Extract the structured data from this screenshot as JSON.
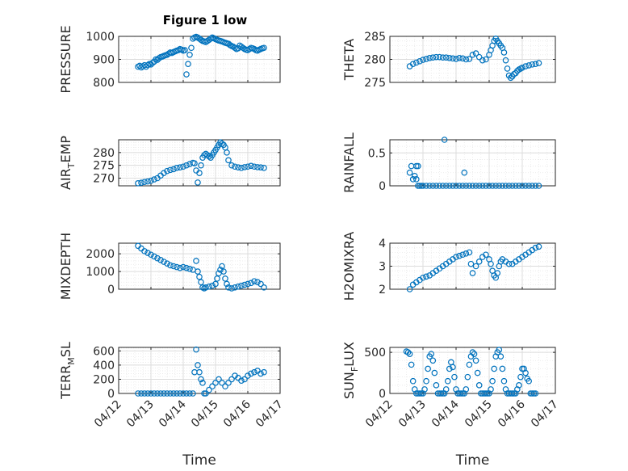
{
  "figure": {
    "title": "Figure 1 low",
    "xlabel": "Time",
    "x_tick_labels": [
      "04/12",
      "04/13",
      "04/14",
      "04/15",
      "04/16",
      "04/17"
    ],
    "marker_color": "#0072BD",
    "axis_color": "#262626",
    "grid_color": "#dcdcdc"
  },
  "chart_data": [
    {
      "type": "scatter",
      "name": "pressure",
      "ylabel": "PRESSURE",
      "ylim": [
        800,
        1000
      ],
      "yticks": [
        800,
        900,
        1000
      ],
      "xlim": [
        "04/12",
        "04/17"
      ],
      "grid": true,
      "x_days": [
        0.6,
        0.65,
        0.7,
        0.75,
        0.8,
        0.85,
        0.9,
        0.95,
        1.0,
        1.05,
        1.1,
        1.15,
        1.2,
        1.25,
        1.3,
        1.35,
        1.4,
        1.45,
        1.5,
        1.55,
        1.6,
        1.65,
        1.7,
        1.75,
        1.8,
        1.85,
        1.9,
        1.95,
        2.0,
        2.05,
        2.1,
        2.15,
        2.2,
        2.25,
        2.3,
        2.35,
        2.4,
        2.45,
        2.5,
        2.55,
        2.6,
        2.65,
        2.7,
        2.75,
        2.8,
        2.85,
        2.9,
        2.95,
        3.0,
        3.05,
        3.1,
        3.15,
        3.2,
        3.25,
        3.3,
        3.35,
        3.4,
        3.45,
        3.5,
        3.55,
        3.6,
        3.65,
        3.7,
        3.75,
        3.8,
        3.85,
        3.9,
        3.95,
        4.0,
        4.05,
        4.1,
        4.15,
        4.2,
        4.25,
        4.3,
        4.35,
        4.4,
        4.45,
        4.5
      ],
      "values": [
        868,
        872,
        865,
        870,
        875,
        868,
        875,
        880,
        878,
        885,
        890,
        900,
        898,
        905,
        910,
        912,
        915,
        918,
        920,
        925,
        930,
        928,
        932,
        935,
        938,
        940,
        945,
        942,
        938,
        940,
        835,
        880,
        920,
        950,
        990,
        995,
        998,
        995,
        990,
        985,
        980,
        978,
        975,
        980,
        985,
        990,
        995,
        992,
        988,
        985,
        982,
        980,
        978,
        975,
        972,
        970,
        968,
        962,
        958,
        955,
        950,
        945,
        948,
        960,
        955,
        950,
        945,
        942,
        940,
        945,
        950,
        948,
        945,
        940,
        938,
        942,
        945,
        948,
        950
      ]
    },
    {
      "type": "scatter",
      "name": "theta",
      "ylabel": "THETA",
      "ylim": [
        275,
        285
      ],
      "yticks": [
        275,
        280,
        285
      ],
      "xlim": [
        "04/12",
        "04/17"
      ],
      "grid": true,
      "x_days": [
        0.6,
        0.7,
        0.8,
        0.9,
        1.0,
        1.1,
        1.2,
        1.3,
        1.4,
        1.5,
        1.6,
        1.7,
        1.8,
        1.9,
        2.0,
        2.1,
        2.2,
        2.3,
        2.4,
        2.5,
        2.6,
        2.7,
        2.8,
        2.9,
        3.0,
        3.05,
        3.1,
        3.15,
        3.2,
        3.25,
        3.3,
        3.35,
        3.4,
        3.45,
        3.5,
        3.55,
        3.6,
        3.65,
        3.7,
        3.75,
        3.8,
        3.85,
        3.9,
        3.95,
        4.0,
        4.1,
        4.2,
        4.3,
        4.4,
        4.5
      ],
      "values": [
        278.5,
        279,
        279.3,
        279.6,
        279.9,
        280.1,
        280.3,
        280.4,
        280.5,
        280.5,
        280.4,
        280.4,
        280.3,
        280.2,
        280.1,
        280.3,
        280.2,
        280,
        280.1,
        281,
        281.3,
        280.5,
        279.8,
        280,
        281,
        282,
        283,
        284,
        284.5,
        284,
        283.5,
        283,
        282.5,
        281.5,
        279.8,
        278,
        276.5,
        276,
        276.3,
        276.8,
        277,
        277.5,
        277.8,
        278,
        278.2,
        278.5,
        278.7,
        278.9,
        279,
        279.2
      ]
    },
    {
      "type": "scatter",
      "name": "air_temp",
      "ylabel_parts": [
        "AIR",
        "T",
        "EMP"
      ],
      "ylim": [
        267,
        285
      ],
      "yticks": [
        270,
        275,
        280
      ],
      "xlim": [
        "04/12",
        "04/17"
      ],
      "grid": true,
      "x_days": [
        0.6,
        0.7,
        0.8,
        0.9,
        1.0,
        1.1,
        1.2,
        1.3,
        1.4,
        1.5,
        1.6,
        1.7,
        1.8,
        1.9,
        2.0,
        2.1,
        2.2,
        2.3,
        2.35,
        2.4,
        2.45,
        2.5,
        2.55,
        2.6,
        2.65,
        2.7,
        2.75,
        2.8,
        2.85,
        2.9,
        2.95,
        3.0,
        3.05,
        3.1,
        3.15,
        3.2,
        3.25,
        3.3,
        3.35,
        3.4,
        3.5,
        3.6,
        3.7,
        3.8,
        3.9,
        4.0,
        4.1,
        4.2,
        4.3,
        4.4,
        4.5
      ],
      "values": [
        268,
        268.2,
        268.5,
        268.7,
        269,
        269.5,
        270,
        271,
        272,
        272.8,
        273.2,
        273.5,
        274,
        274.2,
        274.5,
        275,
        275.5,
        276,
        275.8,
        273,
        268.3,
        272,
        275,
        278,
        279,
        279.5,
        279,
        278.5,
        278,
        279,
        280,
        281,
        282,
        283,
        284,
        283.5,
        283,
        282,
        280,
        277,
        275,
        274.5,
        274.2,
        274,
        274.3,
        274.5,
        274.8,
        274.5,
        274.3,
        274.2,
        274
      ]
    },
    {
      "type": "scatter",
      "name": "rainfall",
      "ylabel": "RAINFALL",
      "ylim": [
        0,
        0.7
      ],
      "yticks": [
        0,
        0.5
      ],
      "xlim": [
        "04/12",
        "04/17"
      ],
      "grid": true,
      "x_days": [
        0.6,
        0.65,
        0.7,
        0.75,
        0.8,
        0.85,
        0.9,
        0.95,
        1.0,
        1.1,
        1.2,
        1.3,
        1.4,
        1.5,
        1.6,
        1.7,
        1.8,
        1.9,
        2.0,
        2.1,
        2.2,
        2.3,
        2.4,
        2.5,
        2.6,
        2.7,
        2.8,
        2.9,
        3.0,
        3.1,
        3.2,
        3.3,
        3.4,
        3.5,
        3.6,
        3.7,
        3.8,
        3.9,
        4.0,
        4.1,
        4.2,
        4.3,
        4.4,
        4.5,
        1.65,
        2.25,
        0.85,
        0.8
      ],
      "values": [
        0.2,
        0.3,
        0.1,
        0.15,
        0.1,
        0,
        0,
        0,
        0,
        0,
        0,
        0,
        0,
        0,
        0,
        0,
        0,
        0,
        0,
        0,
        0,
        0,
        0,
        0,
        0,
        0,
        0,
        0,
        0,
        0,
        0,
        0,
        0,
        0,
        0,
        0,
        0,
        0,
        0,
        0,
        0,
        0,
        0,
        0,
        0.7,
        0.2,
        0.3,
        0.3
      ]
    },
    {
      "type": "scatter",
      "name": "mixdepth",
      "ylabel": "MIXDEPTH",
      "ylim": [
        0,
        2600
      ],
      "yticks": [
        0,
        1000,
        2000
      ],
      "xlim": [
        "04/12",
        "04/17"
      ],
      "grid": true,
      "x_days": [
        0.6,
        0.7,
        0.8,
        0.9,
        1.0,
        1.1,
        1.2,
        1.3,
        1.4,
        1.5,
        1.6,
        1.7,
        1.8,
        1.9,
        2.0,
        2.1,
        2.2,
        2.3,
        2.4,
        2.45,
        2.5,
        2.55,
        2.6,
        2.65,
        2.7,
        2.8,
        2.9,
        3.0,
        3.05,
        3.1,
        3.15,
        3.2,
        3.25,
        3.3,
        3.35,
        3.4,
        3.5,
        3.6,
        3.7,
        3.8,
        3.9,
        4.0,
        4.1,
        4.2,
        4.3,
        4.4,
        4.5
      ],
      "values": [
        2450,
        2300,
        2150,
        2050,
        1950,
        1850,
        1750,
        1650,
        1550,
        1450,
        1350,
        1300,
        1250,
        1200,
        1250,
        1200,
        1150,
        1100,
        1600,
        1000,
        700,
        400,
        100,
        50,
        100,
        150,
        200,
        300,
        600,
        900,
        1100,
        1300,
        1000,
        600,
        300,
        100,
        50,
        100,
        150,
        200,
        250,
        300,
        350,
        450,
        400,
        300,
        100
      ]
    },
    {
      "type": "scatter",
      "name": "h2omixra",
      "ylabel": "H2OMIXRA",
      "ylim": [
        2,
        4
      ],
      "yticks": [
        2,
        3,
        4
      ],
      "xlim": [
        "04/12",
        "04/17"
      ],
      "grid": true,
      "x_days": [
        0.6,
        0.7,
        0.8,
        0.9,
        1.0,
        1.1,
        1.2,
        1.3,
        1.4,
        1.5,
        1.6,
        1.7,
        1.8,
        1.9,
        2.0,
        2.1,
        2.2,
        2.3,
        2.4,
        2.45,
        2.5,
        2.6,
        2.7,
        2.8,
        2.9,
        3.0,
        3.05,
        3.1,
        3.15,
        3.2,
        3.25,
        3.3,
        3.35,
        3.4,
        3.5,
        3.6,
        3.7,
        3.8,
        3.9,
        4.0,
        4.1,
        4.2,
        4.3,
        4.4,
        4.5
      ],
      "values": [
        2,
        2.2,
        2.3,
        2.4,
        2.5,
        2.55,
        2.6,
        2.7,
        2.8,
        2.9,
        3,
        3.1,
        3.2,
        3.3,
        3.4,
        3.45,
        3.5,
        3.55,
        3.6,
        3.1,
        2.7,
        3,
        3.2,
        3.4,
        3.5,
        3.3,
        3.1,
        2.8,
        2.6,
        2.5,
        2.7,
        3,
        3.2,
        3.3,
        3.2,
        3.1,
        3.1,
        3.2,
        3.3,
        3.4,
        3.5,
        3.6,
        3.7,
        3.8,
        3.85
      ]
    },
    {
      "type": "scatter",
      "name": "terr_msl",
      "ylabel_parts": [
        "TERR",
        "M",
        "SL"
      ],
      "ylim": [
        0,
        650
      ],
      "yticks": [
        0,
        200,
        400,
        600
      ],
      "xlim": [
        "04/12",
        "04/17"
      ],
      "grid": true,
      "x_days": [
        0.6,
        0.7,
        0.8,
        0.9,
        1.0,
        1.1,
        1.2,
        1.3,
        1.4,
        1.5,
        1.6,
        1.7,
        1.8,
        1.9,
        2.0,
        2.1,
        2.2,
        2.3,
        2.35,
        2.4,
        2.45,
        2.5,
        2.55,
        2.6,
        2.65,
        2.7,
        2.8,
        2.9,
        3.0,
        3.1,
        3.2,
        3.3,
        3.4,
        3.5,
        3.6,
        3.7,
        3.8,
        3.9,
        4.0,
        4.1,
        4.2,
        4.3,
        4.4,
        4.5
      ],
      "values": [
        0,
        0,
        0,
        0,
        0,
        0,
        0,
        0,
        0,
        0,
        0,
        0,
        0,
        0,
        0,
        0,
        0,
        0,
        300,
        620,
        400,
        300,
        200,
        150,
        0,
        0,
        50,
        100,
        150,
        200,
        150,
        100,
        150,
        200,
        250,
        220,
        180,
        200,
        250,
        280,
        300,
        320,
        280,
        300
      ]
    },
    {
      "type": "scatter",
      "name": "sun_flux",
      "ylabel_parts": [
        "SUN",
        "F",
        "LUX"
      ],
      "ylim": [
        0,
        560
      ],
      "yticks": [
        0,
        500
      ],
      "xlim": [
        "04/12",
        "04/17"
      ],
      "grid": true,
      "x_days": [
        0.5,
        0.55,
        0.6,
        0.65,
        0.7,
        0.75,
        0.8,
        0.85,
        0.9,
        0.95,
        1.0,
        1.05,
        1.1,
        1.15,
        1.2,
        1.25,
        1.3,
        1.35,
        1.4,
        1.45,
        1.5,
        1.55,
        1.6,
        1.65,
        1.7,
        1.75,
        1.8,
        1.85,
        1.9,
        1.95,
        2.0,
        2.05,
        2.1,
        2.15,
        2.2,
        2.25,
        2.3,
        2.35,
        2.4,
        2.45,
        2.5,
        2.55,
        2.6,
        2.65,
        2.7,
        2.75,
        2.8,
        2.85,
        2.9,
        2.95,
        3.0,
        3.05,
        3.1,
        3.15,
        3.2,
        3.25,
        3.3,
        3.35,
        3.4,
        3.45,
        3.5,
        3.55,
        3.6,
        3.65,
        3.7,
        3.75,
        3.8,
        3.85,
        3.9,
        3.95,
        4.0,
        4.05,
        4.1,
        4.15,
        4.2,
        4.25,
        4.3,
        4.35,
        4.4
      ],
      "values": [
        510,
        500,
        480,
        350,
        150,
        50,
        0,
        0,
        0,
        0,
        0,
        50,
        150,
        300,
        450,
        480,
        400,
        250,
        100,
        0,
        0,
        0,
        0,
        0,
        50,
        150,
        300,
        380,
        320,
        200,
        50,
        0,
        0,
        0,
        0,
        0,
        50,
        200,
        350,
        450,
        500,
        480,
        400,
        250,
        100,
        0,
        0,
        0,
        0,
        0,
        0,
        50,
        150,
        300,
        450,
        500,
        530,
        450,
        300,
        150,
        50,
        0,
        0,
        0,
        0,
        0,
        0,
        50,
        100,
        200,
        300,
        300,
        250,
        180,
        150,
        0,
        0,
        0,
        0
      ]
    }
  ]
}
